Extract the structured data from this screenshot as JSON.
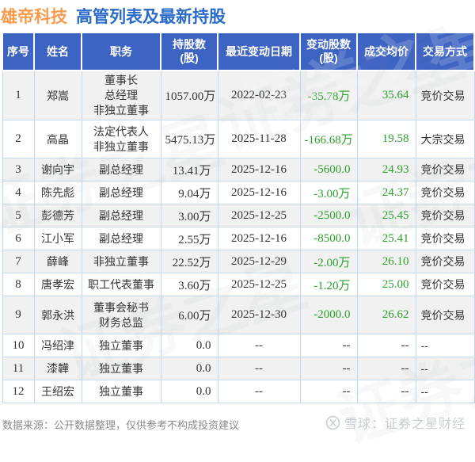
{
  "title": {
    "company": "雄帝科技",
    "subtitle": "高管列表及最新持股"
  },
  "chart_data": {
    "type": "table",
    "title": "雄帝科技 高管列表及最新持股",
    "columns": [
      "序号",
      "姓名",
      "职务",
      "持股数\n(股)",
      "最近变动日期",
      "变动股数\n(股)",
      "成交均价",
      "交易方式"
    ],
    "rows": [
      [
        "1",
        "郑嵩",
        "董事长\n总经理\n非独立董事",
        "1057.00万",
        "2022-02-23",
        "-35.78万",
        "35.64",
        "竞价交易"
      ],
      [
        "2",
        "高晶",
        "法定代表人\n非独立董事",
        "5475.13万",
        "2025-11-28",
        "-166.68万",
        "19.58",
        "大宗交易"
      ],
      [
        "3",
        "谢向宇",
        "副总经理",
        "13.41万",
        "2025-12-16",
        "-5600.0",
        "24.93",
        "竞价交易"
      ],
      [
        "4",
        "陈先彪",
        "副总经理",
        "9.04万",
        "2025-12-16",
        "-3.00万",
        "24.37",
        "竞价交易"
      ],
      [
        "5",
        "彭德芳",
        "副总经理",
        "3.00万",
        "2025-12-25",
        "-2500.0",
        "25.45",
        "竞价交易"
      ],
      [
        "6",
        "江小军",
        "副总经理",
        "2.55万",
        "2025-12-16",
        "-8500.0",
        "25.41",
        "竞价交易"
      ],
      [
        "7",
        "薛峰",
        "非独立董事",
        "22.52万",
        "2025-12-29",
        "-2.00万",
        "26.10",
        "竞价交易"
      ],
      [
        "8",
        "唐孝宏",
        "职工代表董事",
        "3.60万",
        "2025-12-25",
        "-1.20万",
        "25.00",
        "竞价交易"
      ],
      [
        "9",
        "郭永洪",
        "董事会秘书\n财务总监",
        "6.00万",
        "2025-12-30",
        "-2000.0",
        "26.62",
        "竞价交易"
      ],
      [
        "10",
        "冯绍津",
        "独立董事",
        "0.0",
        "--",
        "--",
        "--",
        "--"
      ],
      [
        "11",
        "漆韡",
        "独立董事",
        "0.0",
        "--",
        "--",
        "--",
        "--"
      ],
      [
        "12",
        "王绍宏",
        "独立董事",
        "0.0",
        "--",
        "--",
        "--",
        "--"
      ]
    ]
  },
  "footer": {
    "source": "数据来源：公开数据整理，仅供参考不构成投资建议",
    "brand": "雪球：证券之星财经"
  },
  "watermark": "证券之星",
  "colors": {
    "accent_orange": "#F89B4B",
    "title_blue": "#2A6BC9",
    "header_blue": "#3D63C3",
    "negative_green": "#2CA02C",
    "grid_blue": "#c2d8ec",
    "alt_row_gray": "#f1f1f1"
  }
}
